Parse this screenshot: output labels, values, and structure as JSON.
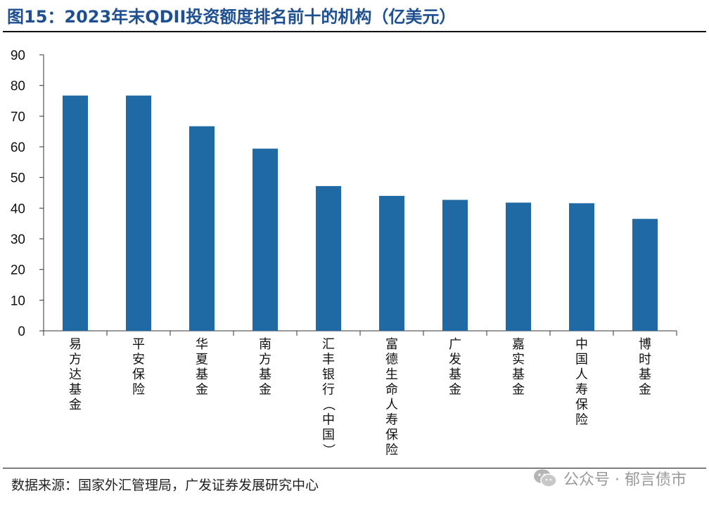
{
  "header": {
    "title": "图15：2023年末QDII投资额度排名前十的机构（亿美元）"
  },
  "footer": {
    "source": "数据来源：国家外汇管理局，广发证券发展研究中心",
    "watermark": "公众号 · 郁言债市",
    "watermark_icon": "wechat-icon"
  },
  "colors": {
    "bar": "#1f6aa5",
    "axis": "#333333"
  },
  "chart_data": {
    "type": "bar",
    "title": "2023年末QDII投资额度排名前十的机构（亿美元）",
    "categories": [
      "易方达基金",
      "平安保险",
      "华夏基金",
      "南方基金",
      "汇丰银行（中国）",
      "富德生命人寿保险",
      "广发基金",
      "嘉实基金",
      "中国人寿保险",
      "博时基金"
    ],
    "values": [
      76.7,
      76.7,
      66.7,
      59.4,
      47.2,
      44.0,
      42.7,
      41.8,
      41.6,
      36.5
    ],
    "yticks": [
      0,
      10,
      20,
      30,
      40,
      50,
      60,
      70,
      80,
      90
    ],
    "ylim": [
      0,
      90
    ],
    "xlabel": "",
    "ylabel": "",
    "grid": false,
    "legend": "none"
  }
}
